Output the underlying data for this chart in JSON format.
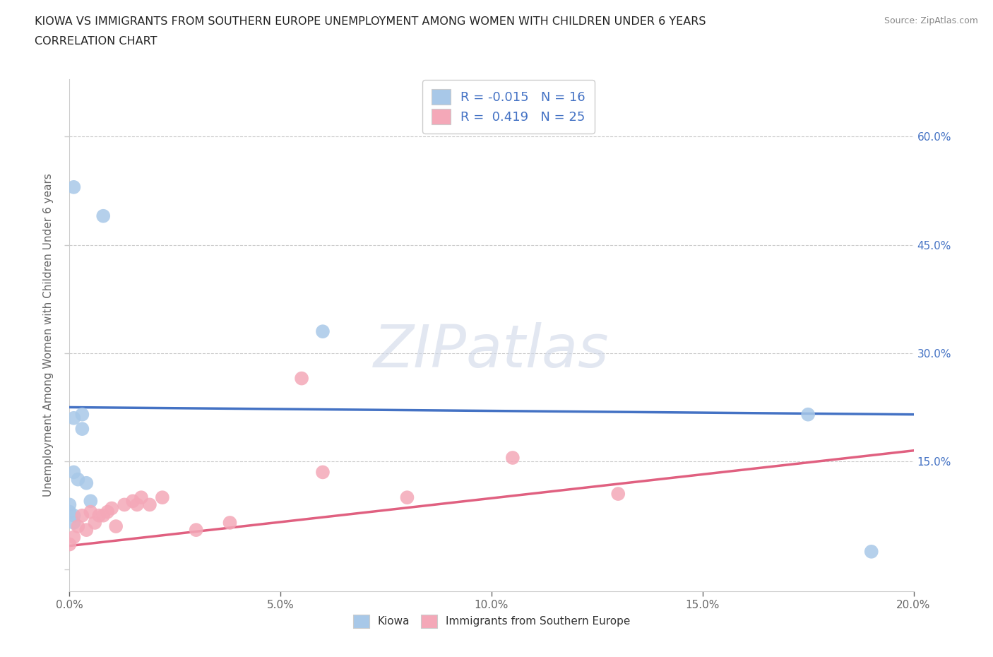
{
  "title_line1": "KIOWA VS IMMIGRANTS FROM SOUTHERN EUROPE UNEMPLOYMENT AMONG WOMEN WITH CHILDREN UNDER 6 YEARS",
  "title_line2": "CORRELATION CHART",
  "source": "Source: ZipAtlas.com",
  "ylabel": "Unemployment Among Women with Children Under 6 years",
  "xlim": [
    0.0,
    0.2
  ],
  "ylim": [
    -0.03,
    0.68
  ],
  "kiowa_R": -0.015,
  "kiowa_N": 16,
  "immigrants_R": 0.419,
  "immigrants_N": 25,
  "kiowa_color": "#a8c8e8",
  "immigrants_color": "#f4a8b8",
  "trend_kiowa_color": "#4472c4",
  "trend_immigrants_color": "#e06080",
  "background_color": "#ffffff",
  "kiowa_x": [
    0.001,
    0.008,
    0.001,
    0.003,
    0.003,
    0.001,
    0.002,
    0.004,
    0.005,
    0.0,
    0.0,
    0.001,
    0.001,
    0.06,
    0.175,
    0.19
  ],
  "kiowa_y": [
    0.53,
    0.49,
    0.21,
    0.215,
    0.195,
    0.135,
    0.125,
    0.12,
    0.095,
    0.09,
    0.08,
    0.075,
    0.065,
    0.33,
    0.215,
    0.025
  ],
  "immigrants_x": [
    0.0,
    0.001,
    0.002,
    0.003,
    0.004,
    0.005,
    0.006,
    0.007,
    0.008,
    0.009,
    0.01,
    0.011,
    0.013,
    0.015,
    0.016,
    0.017,
    0.019,
    0.022,
    0.03,
    0.038,
    0.055,
    0.06,
    0.08,
    0.105,
    0.13
  ],
  "immigrants_y": [
    0.035,
    0.045,
    0.06,
    0.075,
    0.055,
    0.08,
    0.065,
    0.075,
    0.075,
    0.08,
    0.085,
    0.06,
    0.09,
    0.095,
    0.09,
    0.1,
    0.09,
    0.1,
    0.055,
    0.065,
    0.265,
    0.135,
    0.1,
    0.155,
    0.105
  ]
}
